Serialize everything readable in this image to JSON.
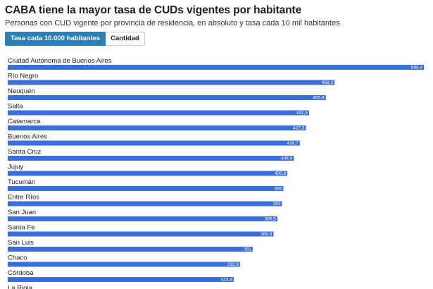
{
  "header": {
    "title": "CABA tiene la mayor tasa de CUDs vigentes por habitante",
    "subtitle": "Personas con CUD vigente por provincia de residencia, en absoluto y tasa cada 10 mil habitantes"
  },
  "toggle": {
    "active_label": "Tasa cada 10.000 habitantes",
    "inactive_label": "Cantidad"
  },
  "colors": {
    "bar": "#3a6fdb",
    "toggle_active": "#2c7fb8"
  },
  "chart_data": {
    "type": "bar",
    "orientation": "horizontal",
    "title": "",
    "xlabel": "",
    "ylabel": "",
    "xlim": [
      0,
      596.4
    ],
    "categories": [
      "Ciudad Autónoma de Buenos Aires",
      "Río Negro",
      "Neuquén",
      "Salta",
      "Catamarca",
      "Buenos Aires",
      "Santa Cruz",
      "Jujuy",
      "Tucumán",
      "Entre Ríos",
      "San Juan",
      "Santa Fe",
      "San Luis",
      "Chaco",
      "Córdoba",
      "La Rioja"
    ],
    "values": [
      596.4,
      468.3,
      455.8,
      431.9,
      427.3,
      418.7,
      409.9,
      400.8,
      395,
      393,
      386.5,
      380.9,
      351,
      332.9,
      323.8,
      null
    ],
    "value_labels": [
      "596,4",
      "468,3",
      "455,8",
      "431,9",
      "427,3",
      "418,7",
      "409,9",
      "400,8",
      "395",
      "393",
      "386,5",
      "380,9",
      "351",
      "332,9",
      "323,8",
      ""
    ]
  }
}
